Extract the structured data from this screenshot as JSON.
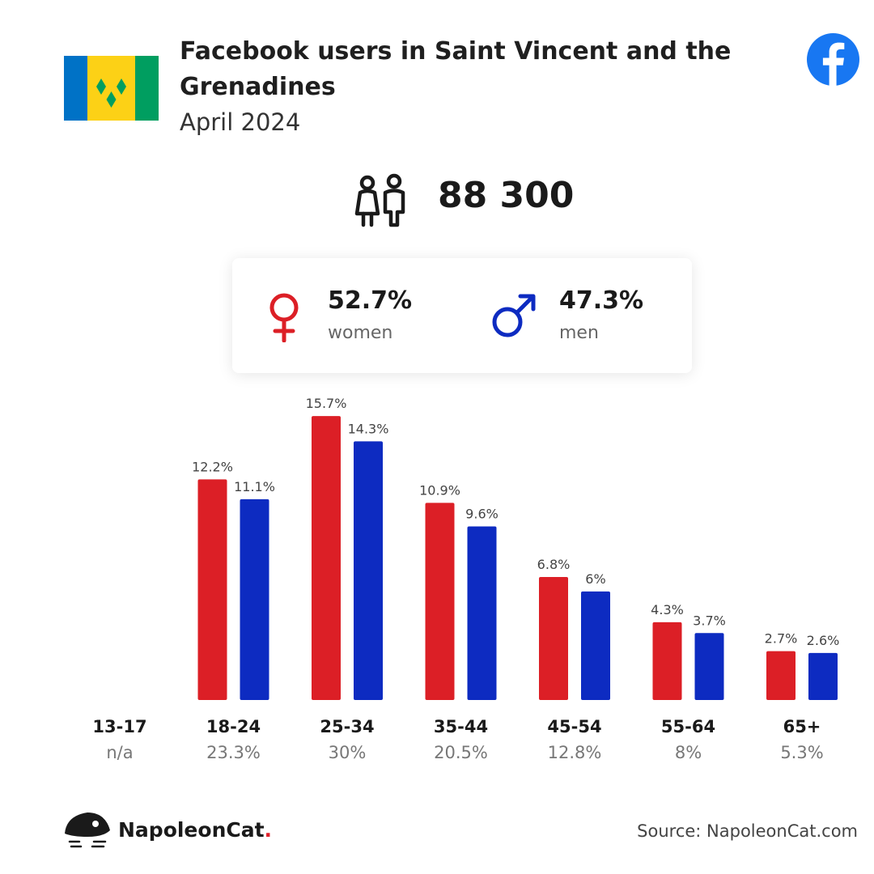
{
  "header": {
    "title": "Facebook users in Saint Vincent and the Grenadines",
    "date": "April 2024"
  },
  "total_users": "88 300",
  "gender": {
    "women": {
      "pct": "52.7%",
      "label": "women",
      "color": "#dc1f26"
    },
    "men": {
      "pct": "47.3%",
      "label": "men",
      "color": "#0d2bc1"
    }
  },
  "chart_data": {
    "type": "bar",
    "categories": [
      "13-17",
      "18-24",
      "25-34",
      "35-44",
      "45-54",
      "55-64",
      "65+"
    ],
    "category_shares": [
      "n/a",
      "23.3%",
      "30%",
      "20.5%",
      "12.8%",
      "8%",
      "5.3%"
    ],
    "series": [
      {
        "name": "women",
        "color": "#dc1f26",
        "values": [
          null,
          12.2,
          15.7,
          10.9,
          6.8,
          4.3,
          2.7
        ],
        "labels": [
          "",
          "12.2%",
          "15.7%",
          "10.9%",
          "6.8%",
          "4.3%",
          "2.7%"
        ]
      },
      {
        "name": "men",
        "color": "#0d2bc1",
        "values": [
          null,
          11.1,
          14.3,
          9.6,
          6,
          3.7,
          2.6
        ],
        "labels": [
          "",
          "11.1%",
          "14.3%",
          "9.6%",
          "6%",
          "3.7%",
          "2.6%"
        ]
      }
    ],
    "grid": false,
    "legend": "none"
  },
  "brand": {
    "name": "NapoleonCat",
    "dot": "."
  },
  "source": "Source: NapoleonCat.com",
  "icons": {
    "flag": "saint-vincent-flag",
    "facebook": "facebook-logo-icon",
    "people": "people-icon",
    "female": "female-symbol-icon",
    "male": "male-symbol-icon",
    "brand": "napoleoncat-logo-icon"
  }
}
